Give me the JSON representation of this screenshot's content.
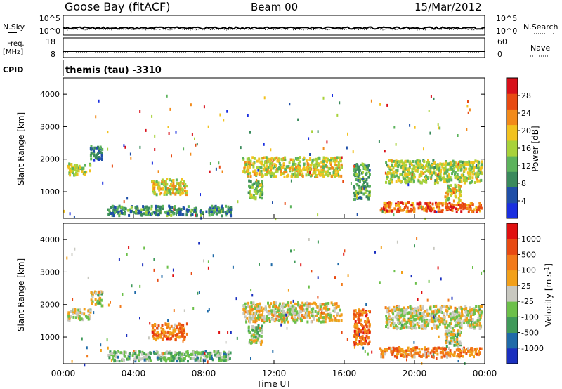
{
  "header": {
    "title": "Goose Bay (fitACF)",
    "beam": "Beam 00",
    "date": "15/Mar/2012"
  },
  "left_labels": {
    "nsky": "N.Sky",
    "freq": "Freq.",
    "freq_unit": "[MHz]",
    "cpid": "CPID",
    "cpid_value": "themis (tau) -3310"
  },
  "right_labels": {
    "nsearch": "N.Search",
    "nave": "Nave"
  },
  "noise_axis": {
    "top": "10^5",
    "bottom": "10^0"
  },
  "freq_axis": {
    "left_top": "18",
    "left_bottom": "8",
    "right_top": "60",
    "right_bottom": "0"
  },
  "x_axis": {
    "label": "Time UT",
    "ticks": [
      "00:00",
      "04:00",
      "08:00",
      "12:00",
      "16:00",
      "20:00",
      "00:00"
    ]
  },
  "chart_data": [
    {
      "type": "heatmap",
      "title": "Power",
      "ylabel": "Slant Range [km]",
      "xlabel": "Time UT",
      "ylim": [
        180,
        4500
      ],
      "xlim": [
        0,
        24
      ],
      "yticks": [
        1000,
        2000,
        3000,
        4000
      ],
      "colorbar": {
        "label": "Power [dB]",
        "ticks": [
          "4",
          "8",
          "12",
          "16",
          "20",
          "24",
          "28"
        ],
        "colors": [
          "#1a2fe0",
          "#1f4fa8",
          "#3a8a5c",
          "#5cb35c",
          "#a8d23a",
          "#f2c21f",
          "#f28a1a",
          "#e84a12",
          "#d8101a"
        ]
      },
      "regions": [
        {
          "t0": 0.2,
          "t1": 1.5,
          "r0": 1550,
          "r1": 1900,
          "level": 0.5
        },
        {
          "t0": 1.5,
          "t1": 2.2,
          "r0": 2000,
          "r1": 2450,
          "level": 0.2
        },
        {
          "t0": 5.0,
          "t1": 7.0,
          "r0": 950,
          "r1": 1450,
          "level": 0.55
        },
        {
          "t0": 2.5,
          "t1": 9.5,
          "r0": 300,
          "r1": 600,
          "level": 0.3
        },
        {
          "t0": 10.2,
          "t1": 15.8,
          "r0": 1500,
          "r1": 2100,
          "level": 0.55
        },
        {
          "t0": 10.5,
          "t1": 11.3,
          "r0": 800,
          "r1": 1400,
          "level": 0.4
        },
        {
          "t0": 16.5,
          "t1": 17.4,
          "r0": 800,
          "r1": 1900,
          "level": 0.35
        },
        {
          "t0": 18.3,
          "t1": 23.8,
          "r0": 1300,
          "r1": 2000,
          "level": 0.5
        },
        {
          "t0": 18.0,
          "t1": 23.8,
          "r0": 420,
          "r1": 720,
          "level": 0.78
        },
        {
          "t0": 21.7,
          "t1": 22.6,
          "r0": 750,
          "r1": 1250,
          "level": 0.55
        }
      ]
    },
    {
      "type": "heatmap",
      "title": "Velocity",
      "ylabel": "Slant Range [km]",
      "xlabel": "Time UT",
      "ylim": [
        180,
        4500
      ],
      "xlim": [
        0,
        24
      ],
      "yticks": [
        1000,
        2000,
        3000,
        4000
      ],
      "colorbar": {
        "label": "Velocity [m s^-1]",
        "ticks": [
          "1000",
          "500",
          "100",
          "25",
          "-25",
          "-100",
          "-500",
          "-1000"
        ],
        "colors": [
          "#1a2fbf",
          "#1f6aa8",
          "#3f9a5a",
          "#6cc04a",
          "#c8c8c0",
          "#f2a01a",
          "#f27a1a",
          "#e84a12",
          "#e01010"
        ]
      },
      "regions": [
        {
          "t0": 0.2,
          "t1": 1.5,
          "r0": 1550,
          "r1": 1900,
          "level": 0.5
        },
        {
          "t0": 1.5,
          "t1": 2.2,
          "r0": 2000,
          "r1": 2450,
          "level": 0.5
        },
        {
          "t0": 5.0,
          "t1": 7.0,
          "r0": 950,
          "r1": 1450,
          "level": 0.72
        },
        {
          "t0": 2.5,
          "t1": 9.5,
          "r0": 300,
          "r1": 600,
          "level": 0.38
        },
        {
          "t0": 10.2,
          "t1": 15.8,
          "r0": 1500,
          "r1": 2100,
          "level": 0.52
        },
        {
          "t0": 10.5,
          "t1": 11.3,
          "r0": 800,
          "r1": 1400,
          "level": 0.45
        },
        {
          "t0": 16.5,
          "t1": 17.4,
          "r0": 800,
          "r1": 1900,
          "level": 0.75
        },
        {
          "t0": 18.3,
          "t1": 23.8,
          "r0": 1300,
          "r1": 2000,
          "level": 0.5
        },
        {
          "t0": 18.0,
          "t1": 23.8,
          "r0": 420,
          "r1": 720,
          "level": 0.7
        },
        {
          "t0": 21.7,
          "t1": 22.6,
          "r0": 750,
          "r1": 1250,
          "level": 0.45
        }
      ]
    }
  ]
}
